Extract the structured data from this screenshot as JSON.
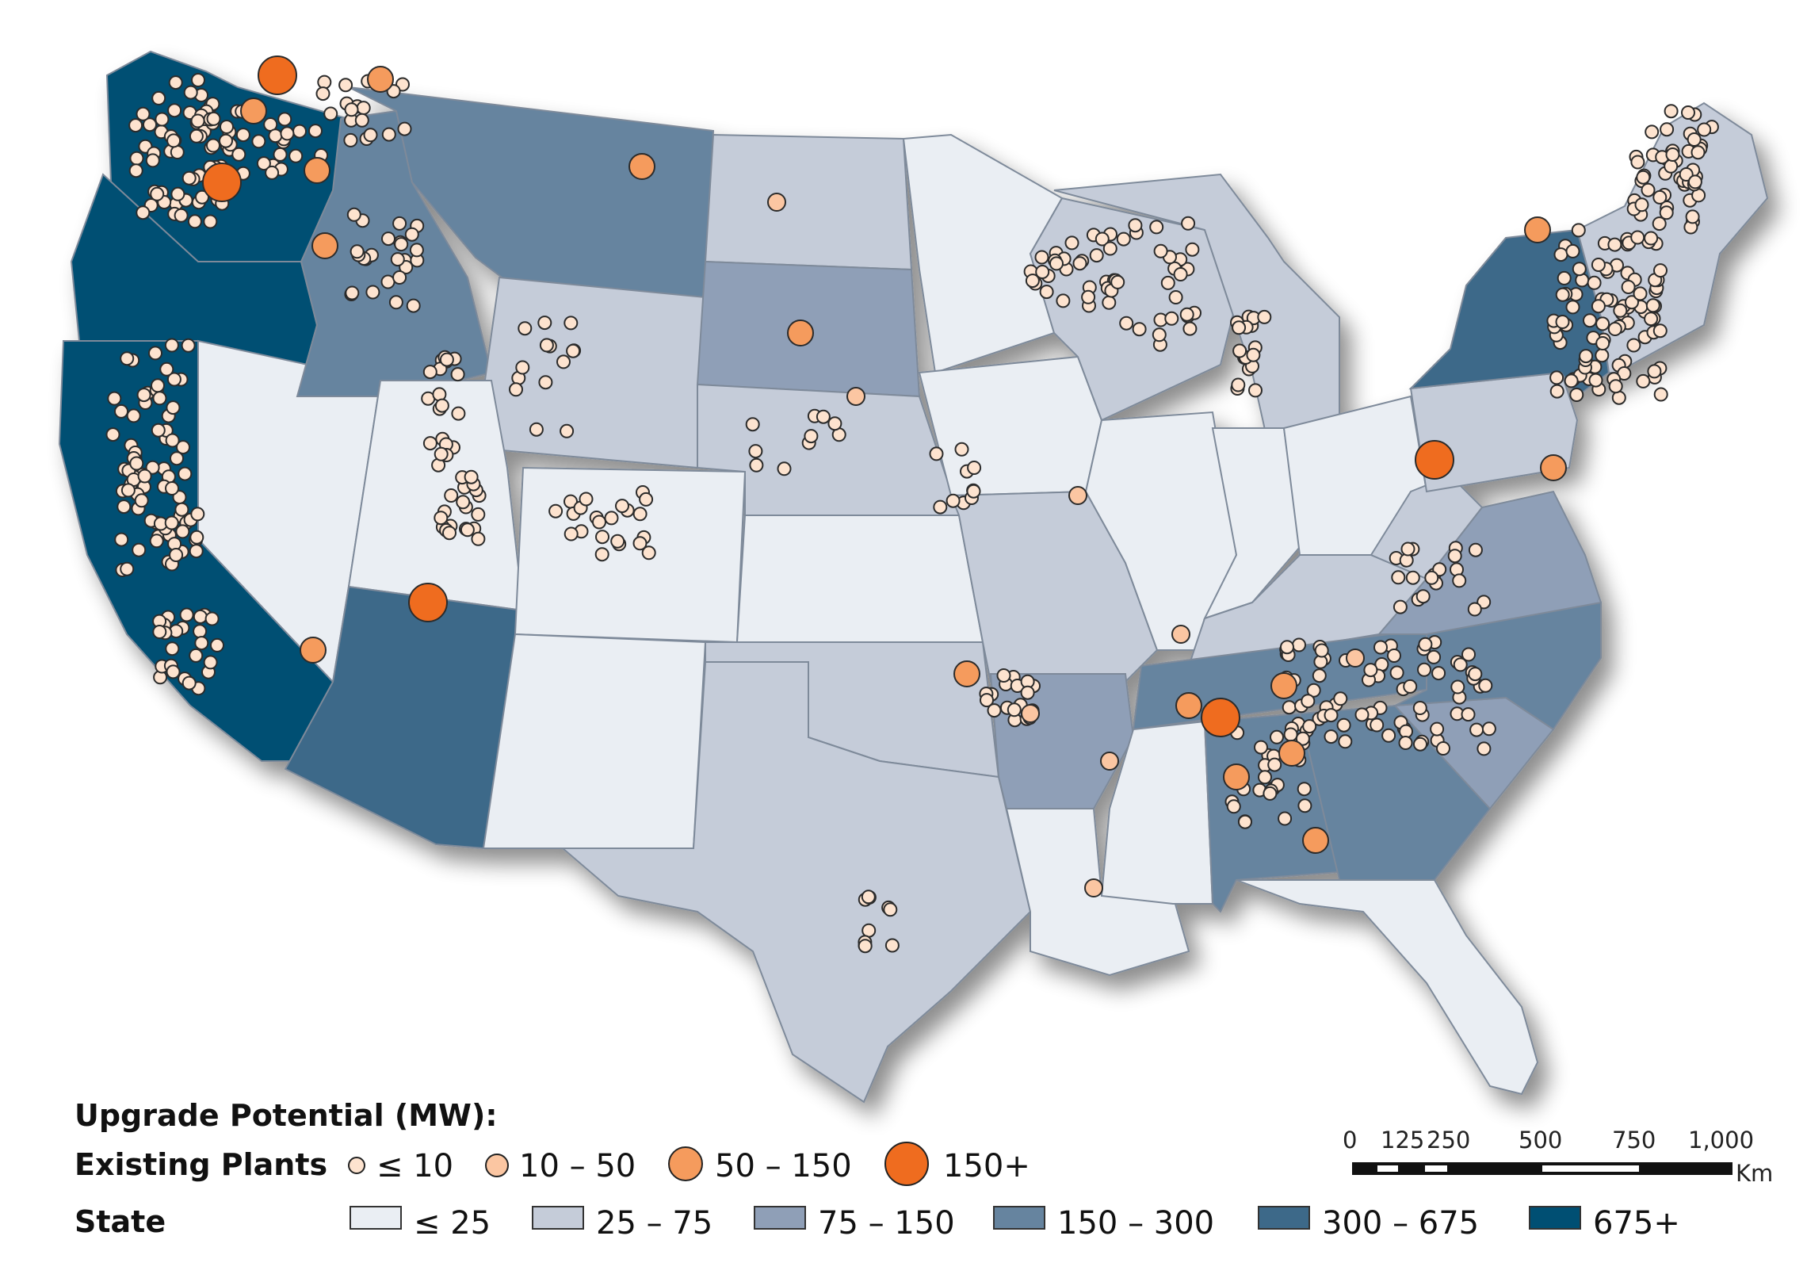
{
  "legend": {
    "title": "Upgrade Potential (MW):",
    "plants_label": "Existing Plants",
    "state_label": "State",
    "plant_classes": [
      {
        "label": "≤ 10",
        "color": "#fde3cf"
      },
      {
        "label": "10 – 50",
        "color": "#fbc6a2"
      },
      {
        "label": "50 – 150",
        "color": "#f59b5d"
      },
      {
        "label": "150+",
        "color": "#ef6c1f"
      }
    ],
    "state_classes": [
      {
        "label": "≤ 25",
        "color": "#eaeef3"
      },
      {
        "label": "25 – 75",
        "color": "#c5ccd9"
      },
      {
        "label": "75 – 150",
        "color": "#8f9fb7"
      },
      {
        "label": "150 – 300",
        "color": "#66849f"
      },
      {
        "label": "300 – 675",
        "color": "#3d6989"
      },
      {
        "label": "675+",
        "color": "#004f73"
      }
    ]
  },
  "scale_bar": {
    "ticks": [
      "0",
      "125",
      "250",
      "500",
      "750",
      "1,000"
    ],
    "unit": "Km"
  },
  "map": {
    "state_levels": [
      {
        "state": "WA",
        "class": 5
      },
      {
        "state": "OR",
        "class": 5
      },
      {
        "state": "CA",
        "class": 5
      },
      {
        "state": "ID",
        "class": 3
      },
      {
        "state": "MT",
        "class": 3
      },
      {
        "state": "NV",
        "class": 0
      },
      {
        "state": "UT",
        "class": 0
      },
      {
        "state": "AZ",
        "class": 4
      },
      {
        "state": "WY",
        "class": 1
      },
      {
        "state": "CO",
        "class": 0
      },
      {
        "state": "NM",
        "class": 0
      },
      {
        "state": "ND",
        "class": 1
      },
      {
        "state": "SD",
        "class": 2
      },
      {
        "state": "NE",
        "class": 1
      },
      {
        "state": "KS",
        "class": 0
      },
      {
        "state": "OK",
        "class": 1
      },
      {
        "state": "TX",
        "class": 1
      },
      {
        "state": "MN",
        "class": 0
      },
      {
        "state": "IA",
        "class": 0
      },
      {
        "state": "MO",
        "class": 1
      },
      {
        "state": "AR",
        "class": 2
      },
      {
        "state": "LA",
        "class": 0
      },
      {
        "state": "WI",
        "class": 1
      },
      {
        "state": "IL",
        "class": 0
      },
      {
        "state": "MS",
        "class": 0
      },
      {
        "state": "MI",
        "class": 1
      },
      {
        "state": "IN",
        "class": 0
      },
      {
        "state": "OH",
        "class": 0
      },
      {
        "state": "KY",
        "class": 1
      },
      {
        "state": "TN",
        "class": 3
      },
      {
        "state": "AL",
        "class": 3
      },
      {
        "state": "GA",
        "class": 3
      },
      {
        "state": "FL",
        "class": 0
      },
      {
        "state": "SC",
        "class": 2
      },
      {
        "state": "NC",
        "class": 3
      },
      {
        "state": "VA",
        "class": 2
      },
      {
        "state": "WV",
        "class": 1
      },
      {
        "state": "PA",
        "class": 1
      },
      {
        "state": "NY",
        "class": 4
      },
      {
        "state": "ME",
        "class": 1
      },
      {
        "state": "NE-REG",
        "class": 1
      }
    ]
  }
}
